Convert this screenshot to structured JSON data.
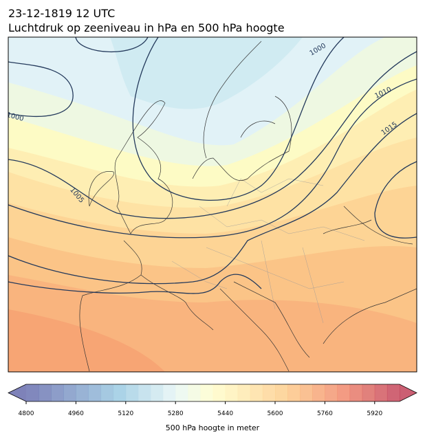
{
  "title": {
    "line1": "23-12-1819 12 UTC",
    "line2": "Luchtdruk op zeeniveau in hPa en 500 hPa hoogte"
  },
  "map": {
    "isobar_labels": [
      1000,
      1010,
      1015,
      1005,
      1000
    ]
  },
  "colorbar": {
    "label": "500 hPa hoogte in meter",
    "lim": [
      4800,
      6000
    ],
    "ticks": [
      4800,
      4960,
      5120,
      5280,
      5440,
      5600,
      5760,
      5920
    ]
  }
}
